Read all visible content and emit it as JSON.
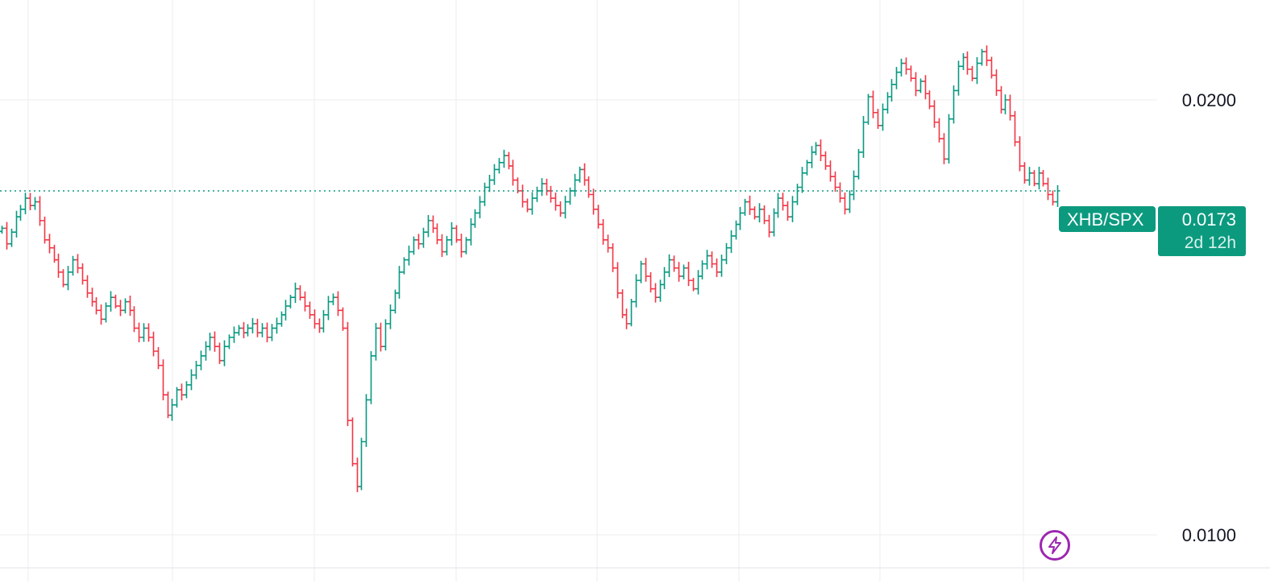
{
  "chart_data": {
    "type": "ohlc",
    "symbol": "XHB/SPX",
    "last_price": "0.0173",
    "countdown": "2d 12h",
    "y_ticks": [
      {
        "value": 0.02,
        "label": "0.0200"
      },
      {
        "value": 0.01,
        "label": "0.0100"
      }
    ],
    "y_scale": "log",
    "grid": true,
    "colors": {
      "up": "#089981",
      "down": "#f23645",
      "grid": "#eeeeef",
      "tag": "#0c9a7f",
      "flash": "#9c27b0"
    },
    "closes": [
      0.0163,
      0.0159,
      0.0162,
      0.0166,
      0.0168,
      0.0171,
      0.0169,
      0.017,
      0.0165,
      0.016,
      0.0158,
      0.0155,
      0.0152,
      0.0149,
      0.0152,
      0.0155,
      0.0153,
      0.015,
      0.0147,
      0.0145,
      0.0143,
      0.0141,
      0.0144,
      0.0146,
      0.0144,
      0.0143,
      0.0145,
      0.0143,
      0.0139,
      0.0137,
      0.0139,
      0.0137,
      0.0134,
      0.0131,
      0.0125,
      0.0121,
      0.0123,
      0.0126,
      0.0125,
      0.0127,
      0.0129,
      0.0131,
      0.0133,
      0.0135,
      0.0137,
      0.0135,
      0.0132,
      0.0135,
      0.0137,
      0.0138,
      0.0139,
      0.0138,
      0.0139,
      0.014,
      0.0138,
      0.0139,
      0.0137,
      0.0139,
      0.014,
      0.0142,
      0.0144,
      0.0146,
      0.0148,
      0.0146,
      0.0144,
      0.0142,
      0.014,
      0.0139,
      0.0142,
      0.0145,
      0.0146,
      0.0143,
      0.0139,
      0.012,
      0.0112,
      0.0108,
      0.0116,
      0.0124,
      0.0133,
      0.0139,
      0.0135,
      0.014,
      0.0143,
      0.0147,
      0.0152,
      0.0155,
      0.0157,
      0.016,
      0.0159,
      0.0162,
      0.0165,
      0.0163,
      0.016,
      0.0157,
      0.016,
      0.0163,
      0.016,
      0.0157,
      0.016,
      0.0164,
      0.0167,
      0.017,
      0.0174,
      0.0176,
      0.0179,
      0.0181,
      0.0183,
      0.018,
      0.0176,
      0.0173,
      0.017,
      0.0168,
      0.0171,
      0.0173,
      0.0175,
      0.0173,
      0.0171,
      0.0169,
      0.0167,
      0.017,
      0.0173,
      0.0176,
      0.0179,
      0.0176,
      0.0172,
      0.0168,
      0.0164,
      0.016,
      0.0158,
      0.0153,
      0.0147,
      0.0142,
      0.014,
      0.0145,
      0.015,
      0.0154,
      0.0151,
      0.0148,
      0.0146,
      0.0149,
      0.0152,
      0.0155,
      0.0153,
      0.0151,
      0.0153,
      0.015,
      0.0148,
      0.0151,
      0.0154,
      0.0156,
      0.0154,
      0.0152,
      0.0155,
      0.0158,
      0.0161,
      0.0164,
      0.0167,
      0.017,
      0.0168,
      0.0166,
      0.0168,
      0.0165,
      0.0162,
      0.0167,
      0.0171,
      0.0169,
      0.0166,
      0.017,
      0.0174,
      0.0178,
      0.0181,
      0.0184,
      0.0186,
      0.0183,
      0.018,
      0.0177,
      0.0174,
      0.0171,
      0.0168,
      0.0172,
      0.0177,
      0.0184,
      0.0193,
      0.0201,
      0.0196,
      0.0192,
      0.0197,
      0.0201,
      0.0205,
      0.0209,
      0.0212,
      0.021,
      0.0207,
      0.0203,
      0.0206,
      0.0202,
      0.0198,
      0.0193,
      0.0188,
      0.0182,
      0.0194,
      0.0203,
      0.0211,
      0.0214,
      0.021,
      0.0207,
      0.0212,
      0.0216,
      0.0213,
      0.0208,
      0.0203,
      0.0197,
      0.02,
      0.0195,
      0.0187,
      0.018,
      0.0176,
      0.0178,
      0.0175,
      0.0178,
      0.0175,
      0.0172,
      0.017,
      0.0173
    ]
  }
}
